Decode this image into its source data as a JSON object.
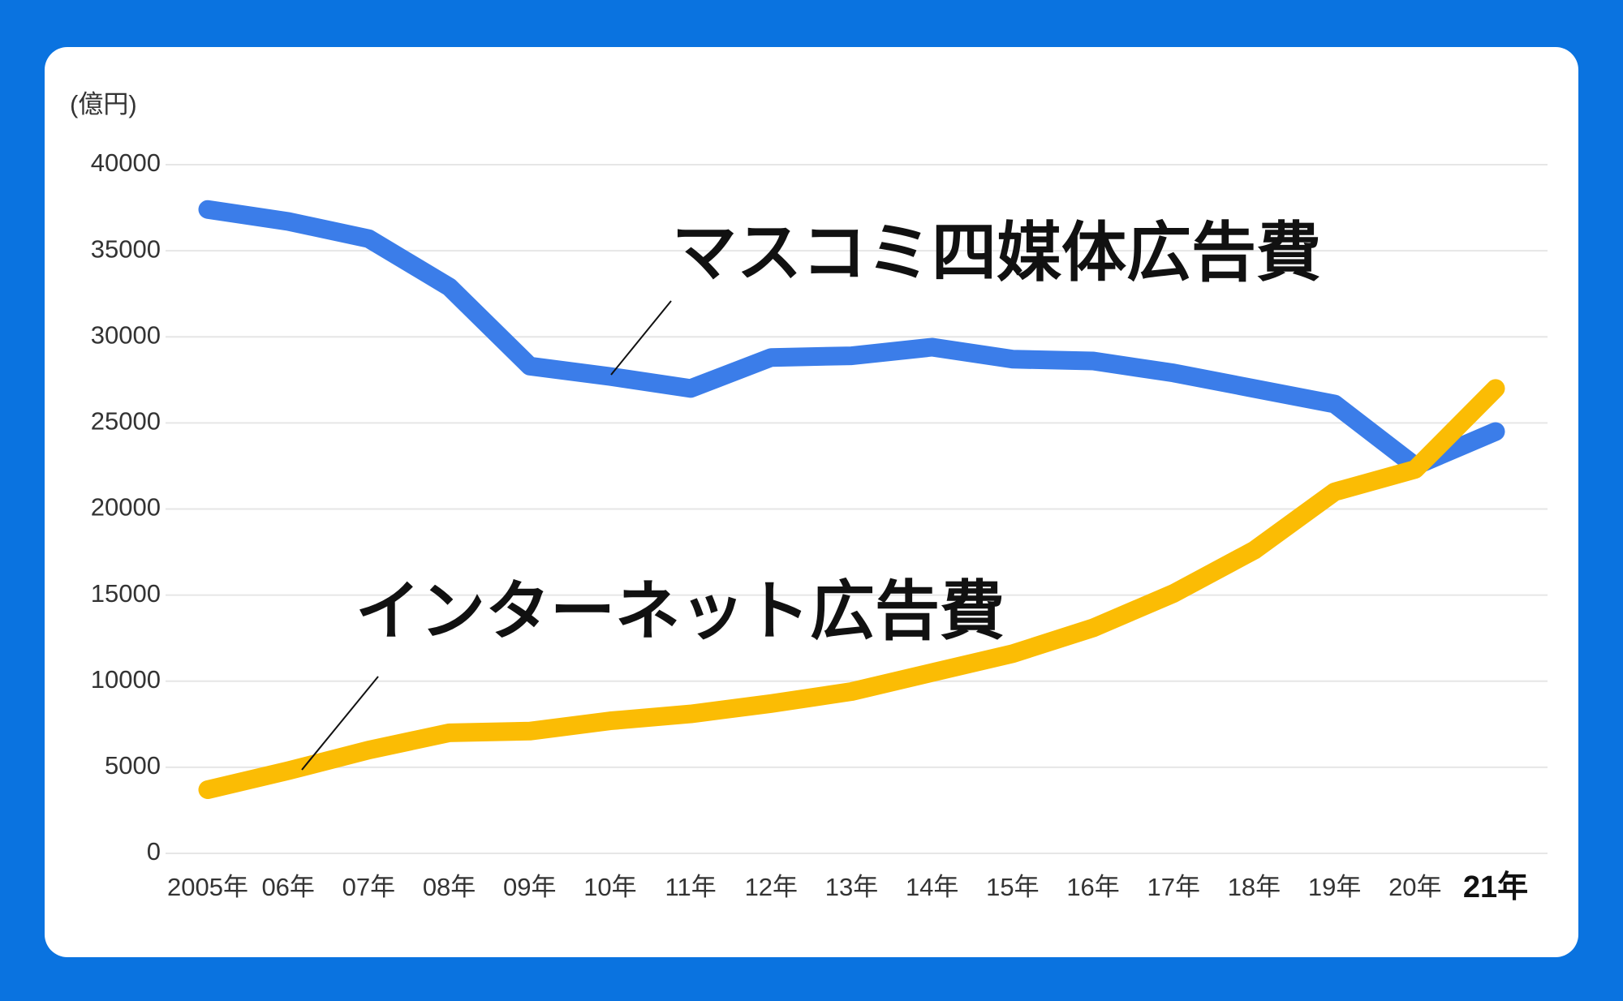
{
  "chart_data": {
    "type": "line",
    "y_label": "(億円)",
    "categories": [
      "2005年",
      "06年",
      "07年",
      "08年",
      "09年",
      "10年",
      "11年",
      "12年",
      "13年",
      "14年",
      "15年",
      "16年",
      "17年",
      "18年",
      "19年",
      "20年",
      "21年"
    ],
    "series": [
      {
        "name": "マスコミ四媒体広告費",
        "color": "#3b7de9",
        "values": [
          37400,
          36700,
          35700,
          32900,
          28300,
          27700,
          27000,
          28800,
          28900,
          29400,
          28700,
          28600,
          27900,
          27000,
          26100,
          22500,
          24500
        ]
      },
      {
        "name": "インターネット広告費",
        "color": "#fbbc04",
        "values": [
          3700,
          4800,
          6000,
          7000,
          7100,
          7700,
          8100,
          8700,
          9400,
          10500,
          11600,
          13100,
          15100,
          17600,
          21000,
          22300,
          27000
        ]
      }
    ],
    "ylim": [
      0,
      40000
    ],
    "yticks": [
      0,
      5000,
      10000,
      15000,
      20000,
      25000,
      30000,
      35000,
      40000
    ],
    "grid": true
  }
}
